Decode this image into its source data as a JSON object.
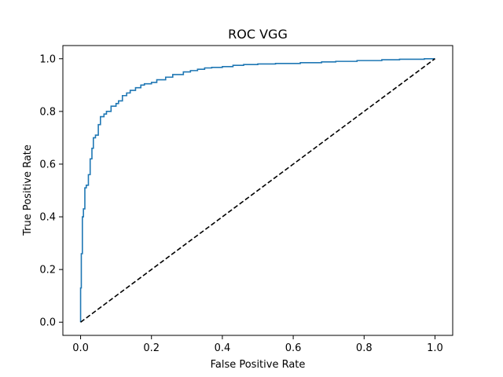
{
  "chart_data": {
    "type": "line",
    "title": "ROC VGG",
    "xlabel": "False Positive Rate",
    "ylabel": "True Positive Rate",
    "xlim": [
      -0.05,
      1.05
    ],
    "ylim": [
      -0.05,
      1.05
    ],
    "xticks": [
      0.0,
      0.2,
      0.4,
      0.6,
      0.8,
      1.0
    ],
    "yticks": [
      0.0,
      0.2,
      0.4,
      0.6,
      0.8,
      1.0
    ],
    "xtick_labels": [
      "0.0",
      "0.2",
      "0.4",
      "0.6",
      "0.8",
      "1.0"
    ],
    "ytick_labels": [
      "0.0",
      "0.2",
      "0.4",
      "0.6",
      "0.8",
      "1.0"
    ],
    "grid": false,
    "series": [
      {
        "color": "#1f77b4",
        "style": "solid",
        "x": [
          0.0,
          0.0,
          0.002,
          0.002,
          0.005,
          0.005,
          0.008,
          0.008,
          0.012,
          0.012,
          0.016,
          0.016,
          0.022,
          0.022,
          0.027,
          0.027,
          0.032,
          0.032,
          0.036,
          0.036,
          0.042,
          0.042,
          0.05,
          0.05,
          0.056,
          0.056,
          0.066,
          0.066,
          0.073,
          0.073,
          0.086,
          0.086,
          0.1,
          0.1,
          0.107,
          0.107,
          0.118,
          0.118,
          0.13,
          0.13,
          0.14,
          0.14,
          0.155,
          0.155,
          0.17,
          0.17,
          0.18,
          0.18,
          0.2,
          0.2,
          0.215,
          0.215,
          0.24,
          0.24,
          0.26,
          0.26,
          0.29,
          0.29,
          0.31,
          0.31,
          0.33,
          0.33,
          0.35,
          0.35,
          0.37,
          0.37,
          0.4,
          0.4,
          0.43,
          0.43,
          0.46,
          0.46,
          0.5,
          0.5,
          0.55,
          0.55,
          0.62,
          0.62,
          0.68,
          0.68,
          0.72,
          0.72,
          0.78,
          0.78,
          0.85,
          0.85,
          0.9,
          0.9,
          0.97,
          0.97,
          1.0
        ],
        "y": [
          0.0,
          0.13,
          0.13,
          0.26,
          0.26,
          0.4,
          0.4,
          0.43,
          0.43,
          0.51,
          0.51,
          0.52,
          0.52,
          0.56,
          0.56,
          0.62,
          0.62,
          0.66,
          0.66,
          0.7,
          0.7,
          0.71,
          0.71,
          0.75,
          0.75,
          0.78,
          0.78,
          0.79,
          0.79,
          0.8,
          0.8,
          0.82,
          0.82,
          0.83,
          0.83,
          0.84,
          0.84,
          0.86,
          0.86,
          0.87,
          0.87,
          0.88,
          0.88,
          0.89,
          0.89,
          0.9,
          0.9,
          0.905,
          0.905,
          0.91,
          0.91,
          0.92,
          0.92,
          0.93,
          0.93,
          0.94,
          0.94,
          0.95,
          0.95,
          0.955,
          0.955,
          0.96,
          0.96,
          0.965,
          0.965,
          0.967,
          0.967,
          0.97,
          0.97,
          0.975,
          0.975,
          0.978,
          0.978,
          0.98,
          0.98,
          0.982,
          0.982,
          0.985,
          0.985,
          0.988,
          0.988,
          0.99,
          0.99,
          0.993,
          0.993,
          0.996,
          0.996,
          0.998,
          0.998,
          1.0,
          1.0
        ]
      },
      {
        "color": "#000000",
        "style": "dashed",
        "x": [
          0.0,
          1.0
        ],
        "y": [
          0.0,
          1.0
        ]
      }
    ]
  }
}
